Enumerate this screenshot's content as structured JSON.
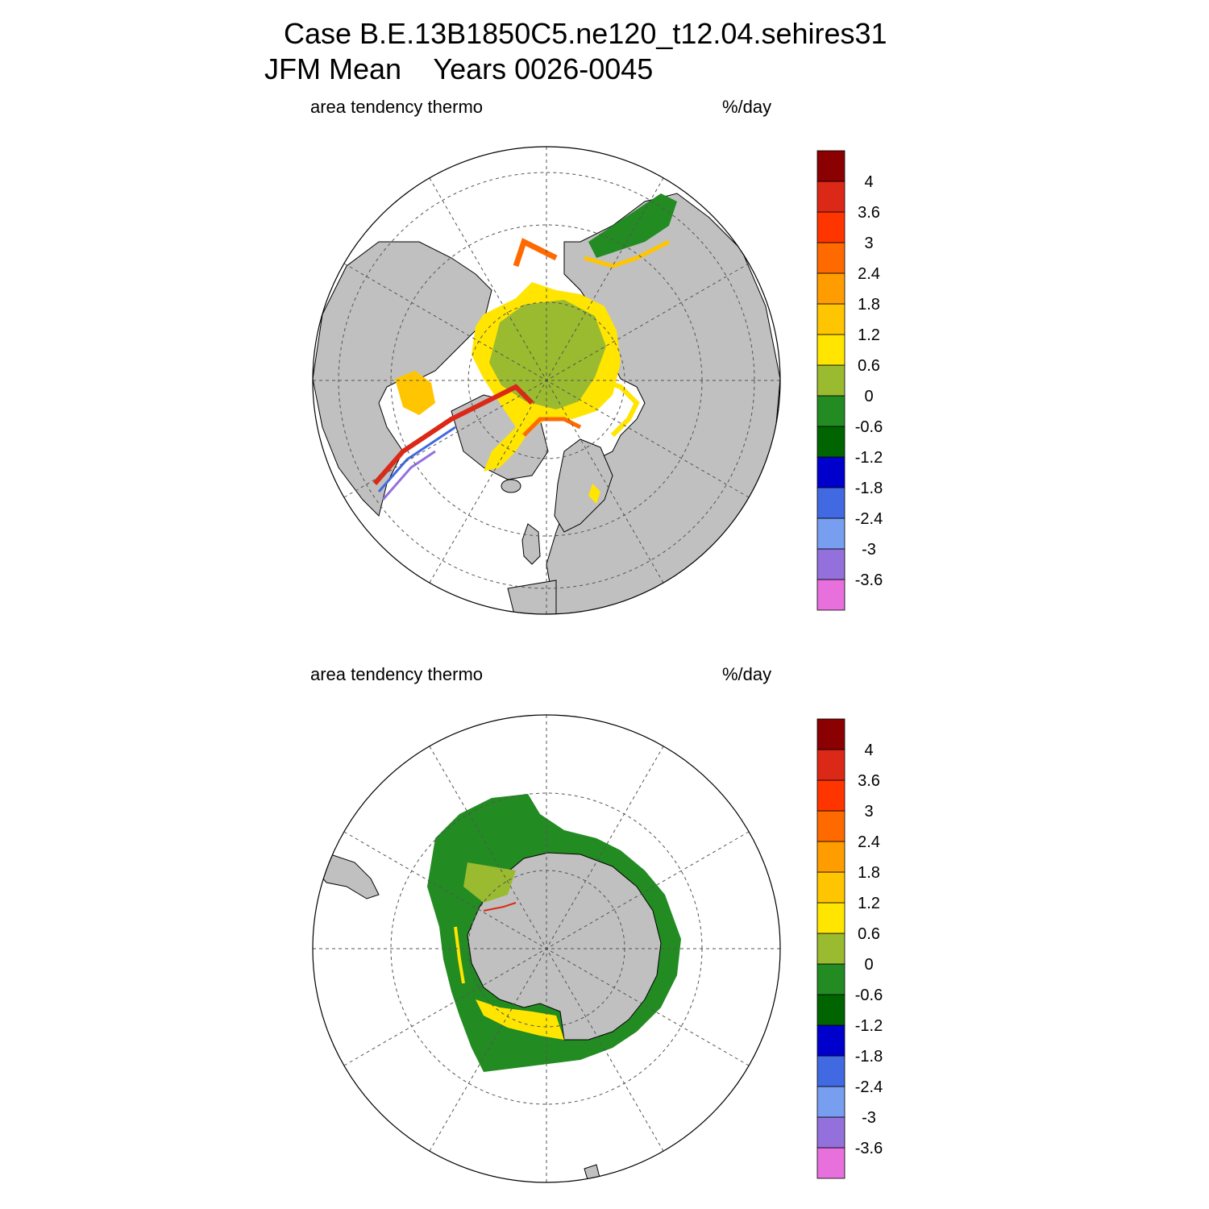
{
  "title": {
    "line1": "Case B.E.13B1850C5.ne120_t12.04.sehires31",
    "line2": "JFM Mean    Years 0026-0045"
  },
  "colorbar": {
    "colors": [
      "#e770dd",
      "#9370db",
      "#789ef0",
      "#4169e1",
      "#0000cd",
      "#006400",
      "#228b22",
      "#9aba30",
      "#ffe500",
      "#ffc500",
      "#ff9d00",
      "#ff6a00",
      "#ff3500",
      "#dc2817",
      "#8b0000"
    ],
    "labels": [
      "-3.6",
      "-3",
      "-2.4",
      "-1.8",
      "-1.2",
      "-0.6",
      "0",
      "0.6",
      "1.2",
      "1.8",
      "2.4",
      "3",
      "3.6",
      "4"
    ]
  },
  "panels": [
    {
      "id": "north",
      "left_label": "area tendency thermo",
      "right_label": "%/day"
    },
    {
      "id": "south",
      "left_label": "area tendency thermo",
      "right_label": "%/day"
    }
  ]
}
